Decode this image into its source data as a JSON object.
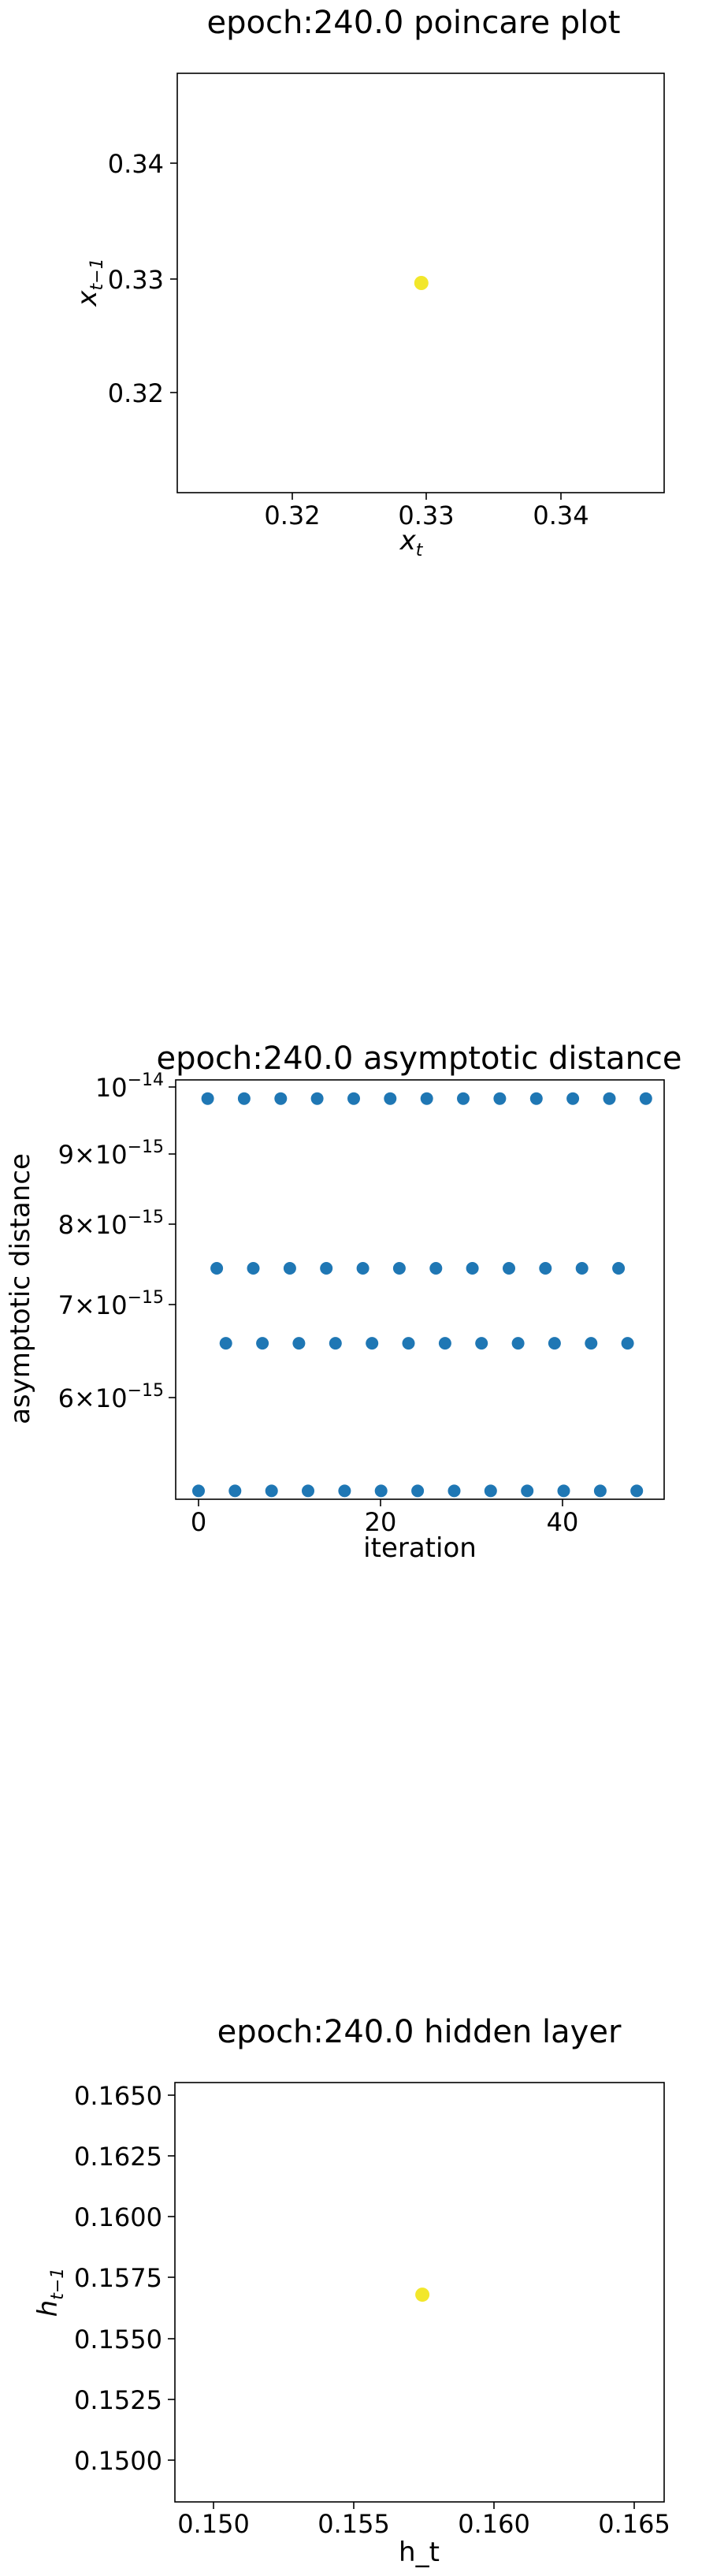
{
  "charts": {
    "poincare": {
      "title": "epoch:240.0 poincare plot",
      "xlabel": "x",
      "xlabel_sub": "t",
      "ylabel": "x",
      "ylabel_sub": "t−1",
      "xticks": [
        "0.32",
        "0.33",
        "0.34"
      ],
      "yticks": [
        "0.32",
        "0.33",
        "0.34"
      ]
    },
    "asymptotic": {
      "title": "epoch:240.0 asymptotic distance",
      "xlabel": "iteration",
      "ylabel": "asymptotic distance",
      "xticks": [
        "0",
        "20",
        "40"
      ],
      "ytick_top": "10",
      "ytick_top_exp": "−14",
      "yticks": [
        {
          "mant": "9",
          "exp": "−15"
        },
        {
          "mant": "8",
          "exp": "−15"
        },
        {
          "mant": "7",
          "exp": "−15"
        },
        {
          "mant": "6",
          "exp": "−15"
        }
      ],
      "times": "×10"
    },
    "hidden": {
      "title": "epoch:240.0 hidden layer",
      "xlabel": "h_t",
      "ylabel": "h",
      "ylabel_sub": "t−1",
      "xticks": [
        "0.150",
        "0.155",
        "0.160",
        "0.165"
      ],
      "yticks": [
        "0.1650",
        "0.1625",
        "0.1600",
        "0.1575",
        "0.1550",
        "0.1525",
        "0.1500"
      ]
    }
  },
  "chart_data": [
    {
      "type": "scatter",
      "title": "epoch:240.0 poincare plot",
      "xlabel": "x_t",
      "ylabel": "x_{t-1}",
      "xlim": [
        0.3112,
        0.3477
      ],
      "ylim": [
        0.3115,
        0.3475
      ],
      "points": [
        {
          "x": 0.3295,
          "y": 0.3295
        }
      ],
      "color": "#f2e72b"
    },
    {
      "type": "scatter",
      "title": "epoch:240.0 asymptotic distance",
      "xlabel": "iteration",
      "ylabel": "asymptotic distance",
      "xlim": [
        -2.5,
        51.0
      ],
      "ylim": [
        5.13e-15,
        1.01e-14
      ],
      "yscale": "log",
      "color": "#1f77b4",
      "x": [
        0,
        1,
        2,
        3,
        4,
        5,
        6,
        7,
        8,
        9,
        10,
        11,
        12,
        13,
        14,
        15,
        16,
        17,
        18,
        19,
        20,
        21,
        22,
        23,
        24,
        25,
        26,
        27,
        28,
        29,
        30,
        31,
        32,
        33,
        34,
        35,
        36,
        37,
        38,
        39,
        40,
        41,
        42,
        43,
        44,
        45,
        46,
        47,
        48,
        49
      ],
      "y": [
        5.2e-15,
        9.8e-15,
        7.45e-15,
        6.6e-15,
        5.2e-15,
        9.8e-15,
        7.45e-15,
        6.6e-15,
        5.2e-15,
        9.8e-15,
        7.45e-15,
        6.6e-15,
        5.2e-15,
        9.8e-15,
        7.45e-15,
        6.6e-15,
        5.2e-15,
        9.8e-15,
        7.45e-15,
        6.6e-15,
        5.2e-15,
        9.8e-15,
        7.45e-15,
        6.6e-15,
        5.2e-15,
        9.8e-15,
        7.45e-15,
        6.6e-15,
        5.2e-15,
        9.8e-15,
        7.45e-15,
        6.6e-15,
        5.2e-15,
        9.8e-15,
        7.45e-15,
        6.6e-15,
        5.2e-15,
        9.8e-15,
        7.45e-15,
        6.6e-15,
        5.2e-15,
        9.8e-15,
        7.45e-15,
        6.6e-15,
        5.2e-15,
        9.8e-15,
        7.45e-15,
        6.6e-15,
        5.2e-15,
        9.8e-15
      ]
    },
    {
      "type": "scatter",
      "title": "epoch:240.0 hidden layer",
      "xlabel": "h_t",
      "ylabel": "h_{t-1}",
      "xlim": [
        0.1481,
        0.1655
      ],
      "ylim": [
        0.1484,
        0.1656
      ],
      "points": [
        {
          "x": 0.1569,
          "y": 0.1569
        }
      ],
      "color": "#f2e72b"
    }
  ]
}
